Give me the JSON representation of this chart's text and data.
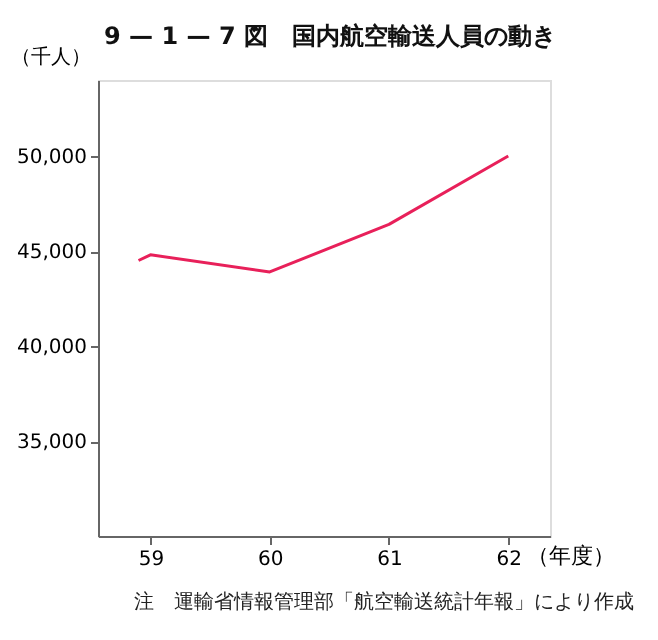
{
  "chart_data": {
    "type": "line",
    "title": "9 — 1 — 7 図　国内航空輸送人員の動き",
    "ylabel": "（千人）",
    "xlabel": "（年度）",
    "annotations": [
      {
        "text": "注　運輸省情報管理部「航空輸送統計年報」により作成"
      }
    ],
    "x": [
      58.9,
      59,
      60,
      61,
      62
    ],
    "series": [
      {
        "color": "#e8205a",
        "values": [
          44500,
          44800,
          43900,
          46400,
          50000
        ]
      }
    ],
    "xlim": [
      58.56,
      62.35
    ],
    "xticks": [
      59,
      60,
      61,
      62
    ],
    "ylim": [
      30000,
      54000
    ],
    "yticks": [
      {
        "value": 35000,
        "label": "35,000"
      },
      {
        "value": 40000,
        "label": "40,000"
      },
      {
        "value": 45000,
        "label": "45,000"
      },
      {
        "value": 50000,
        "label": "50,000"
      }
    ],
    "grid": false,
    "marker": "none",
    "line_style": "solid"
  }
}
